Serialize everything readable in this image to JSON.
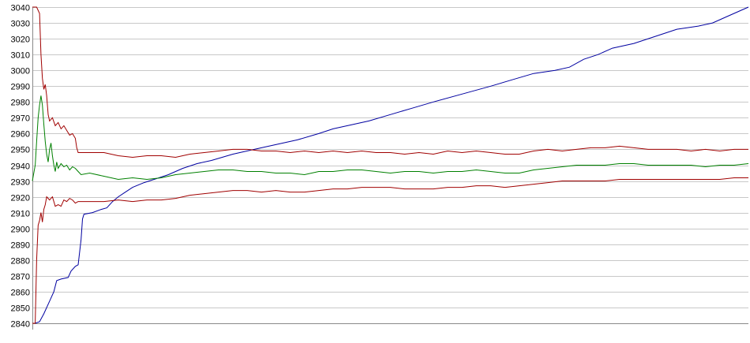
{
  "chart_data": {
    "type": "line",
    "title": "",
    "xlabel": "",
    "ylabel": "",
    "ylim": [
      2840,
      3040
    ],
    "yticks": [
      3040,
      3030,
      3020,
      3010,
      3000,
      2990,
      2980,
      2970,
      2960,
      2950,
      2940,
      2930,
      2920,
      2910,
      2900,
      2890,
      2880,
      2870,
      2860,
      2850,
      2840
    ],
    "xlim": [
      0,
      500
    ],
    "grid": true,
    "legend": "none",
    "series": [
      {
        "color": "#0000a0",
        "points": [
          [
            0,
            2840
          ],
          [
            2,
            2840
          ],
          [
            5,
            2841
          ],
          [
            8,
            2846
          ],
          [
            12,
            2854
          ],
          [
            15,
            2860
          ],
          [
            17,
            2867
          ],
          [
            20,
            2868
          ],
          [
            25,
            2869
          ],
          [
            27,
            2873
          ],
          [
            30,
            2876
          ],
          [
            32,
            2877
          ],
          [
            34,
            2893
          ],
          [
            35,
            2906
          ],
          [
            36,
            2909
          ],
          [
            42,
            2910
          ],
          [
            48,
            2912
          ],
          [
            52,
            2913
          ],
          [
            56,
            2917
          ],
          [
            60,
            2920
          ],
          [
            65,
            2923
          ],
          [
            70,
            2926
          ],
          [
            78,
            2929
          ],
          [
            85,
            2931
          ],
          [
            95,
            2934
          ],
          [
            105,
            2938
          ],
          [
            115,
            2941
          ],
          [
            125,
            2943
          ],
          [
            140,
            2947
          ],
          [
            155,
            2950
          ],
          [
            170,
            2953
          ],
          [
            185,
            2956
          ],
          [
            200,
            2960
          ],
          [
            210,
            2963
          ],
          [
            220,
            2965
          ],
          [
            235,
            2968
          ],
          [
            250,
            2972
          ],
          [
            265,
            2976
          ],
          [
            280,
            2980
          ],
          [
            300,
            2985
          ],
          [
            320,
            2990
          ],
          [
            335,
            2994
          ],
          [
            350,
            2998
          ],
          [
            365,
            3000
          ],
          [
            375,
            3002
          ],
          [
            385,
            3007
          ],
          [
            395,
            3010
          ],
          [
            405,
            3014
          ],
          [
            420,
            3017
          ],
          [
            440,
            3023
          ],
          [
            450,
            3026
          ],
          [
            465,
            3028
          ],
          [
            475,
            3030
          ],
          [
            485,
            3034
          ],
          [
            495,
            3038
          ],
          [
            500,
            3040
          ]
        ]
      },
      {
        "color": "#a00000",
        "points": [
          [
            0,
            3040
          ],
          [
            3,
            3040
          ],
          [
            5,
            3036
          ],
          [
            6,
            3010
          ],
          [
            7,
            2995
          ],
          [
            8,
            2988
          ],
          [
            9,
            2991
          ],
          [
            10,
            2984
          ],
          [
            11,
            2972
          ],
          [
            12,
            2968
          ],
          [
            14,
            2970
          ],
          [
            16,
            2965
          ],
          [
            18,
            2967
          ],
          [
            20,
            2963
          ],
          [
            22,
            2965
          ],
          [
            24,
            2962
          ],
          [
            26,
            2959
          ],
          [
            28,
            2960
          ],
          [
            30,
            2957
          ],
          [
            31,
            2951
          ],
          [
            32,
            2948
          ],
          [
            40,
            2948
          ],
          [
            50,
            2948
          ],
          [
            60,
            2946
          ],
          [
            70,
            2945
          ],
          [
            80,
            2946
          ],
          [
            90,
            2946
          ],
          [
            100,
            2945
          ],
          [
            110,
            2947
          ],
          [
            120,
            2948
          ],
          [
            130,
            2949
          ],
          [
            140,
            2950
          ],
          [
            150,
            2950
          ],
          [
            160,
            2949
          ],
          [
            170,
            2949
          ],
          [
            180,
            2948
          ],
          [
            190,
            2949
          ],
          [
            200,
            2948
          ],
          [
            210,
            2949
          ],
          [
            220,
            2948
          ],
          [
            230,
            2949
          ],
          [
            240,
            2948
          ],
          [
            250,
            2948
          ],
          [
            260,
            2947
          ],
          [
            270,
            2948
          ],
          [
            280,
            2947
          ],
          [
            290,
            2949
          ],
          [
            300,
            2948
          ],
          [
            310,
            2949
          ],
          [
            320,
            2948
          ],
          [
            330,
            2947
          ],
          [
            340,
            2947
          ],
          [
            350,
            2949
          ],
          [
            360,
            2950
          ],
          [
            370,
            2949
          ],
          [
            380,
            2950
          ],
          [
            390,
            2951
          ],
          [
            400,
            2951
          ],
          [
            410,
            2952
          ],
          [
            420,
            2951
          ],
          [
            430,
            2950
          ],
          [
            440,
            2950
          ],
          [
            450,
            2950
          ],
          [
            460,
            2949
          ],
          [
            470,
            2950
          ],
          [
            480,
            2949
          ],
          [
            490,
            2950
          ],
          [
            500,
            2950
          ]
        ]
      },
      {
        "color": "#008000",
        "points": [
          [
            0,
            2930
          ],
          [
            2,
            2940
          ],
          [
            3,
            2955
          ],
          [
            4,
            2970
          ],
          [
            5,
            2978
          ],
          [
            6,
            2984
          ],
          [
            7,
            2978
          ],
          [
            8,
            2966
          ],
          [
            9,
            2955
          ],
          [
            10,
            2947
          ],
          [
            11,
            2942
          ],
          [
            12,
            2950
          ],
          [
            13,
            2954
          ],
          [
            14,
            2946
          ],
          [
            15,
            2940
          ],
          [
            16,
            2936
          ],
          [
            17,
            2942
          ],
          [
            18,
            2938
          ],
          [
            20,
            2941
          ],
          [
            22,
            2939
          ],
          [
            24,
            2940
          ],
          [
            26,
            2937
          ],
          [
            28,
            2939
          ],
          [
            30,
            2938
          ],
          [
            32,
            2936
          ],
          [
            34,
            2934
          ],
          [
            40,
            2935
          ],
          [
            50,
            2933
          ],
          [
            60,
            2931
          ],
          [
            70,
            2932
          ],
          [
            80,
            2931
          ],
          [
            90,
            2932
          ],
          [
            100,
            2934
          ],
          [
            110,
            2935
          ],
          [
            120,
            2936
          ],
          [
            130,
            2937
          ],
          [
            140,
            2937
          ],
          [
            150,
            2936
          ],
          [
            160,
            2936
          ],
          [
            170,
            2935
          ],
          [
            180,
            2935
          ],
          [
            190,
            2934
          ],
          [
            200,
            2936
          ],
          [
            210,
            2936
          ],
          [
            220,
            2937
          ],
          [
            230,
            2937
          ],
          [
            240,
            2936
          ],
          [
            250,
            2935
          ],
          [
            260,
            2936
          ],
          [
            270,
            2936
          ],
          [
            280,
            2935
          ],
          [
            290,
            2936
          ],
          [
            300,
            2936
          ],
          [
            310,
            2937
          ],
          [
            320,
            2936
          ],
          [
            330,
            2935
          ],
          [
            340,
            2935
          ],
          [
            350,
            2937
          ],
          [
            360,
            2938
          ],
          [
            370,
            2939
          ],
          [
            380,
            2940
          ],
          [
            390,
            2940
          ],
          [
            400,
            2940
          ],
          [
            410,
            2941
          ],
          [
            420,
            2941
          ],
          [
            430,
            2940
          ],
          [
            440,
            2940
          ],
          [
            450,
            2940
          ],
          [
            460,
            2940
          ],
          [
            470,
            2939
          ],
          [
            480,
            2940
          ],
          [
            490,
            2940
          ],
          [
            500,
            2941
          ]
        ]
      },
      {
        "color": "#a00000",
        "points": [
          [
            0,
            2840
          ],
          [
            2,
            2840
          ],
          [
            3,
            2880
          ],
          [
            4,
            2902
          ],
          [
            5,
            2905
          ],
          [
            6,
            2910
          ],
          [
            7,
            2904
          ],
          [
            8,
            2912
          ],
          [
            9,
            2915
          ],
          [
            10,
            2920
          ],
          [
            12,
            2918
          ],
          [
            14,
            2920
          ],
          [
            16,
            2914
          ],
          [
            18,
            2915
          ],
          [
            20,
            2914
          ],
          [
            22,
            2918
          ],
          [
            24,
            2917
          ],
          [
            26,
            2919
          ],
          [
            28,
            2918
          ],
          [
            30,
            2916
          ],
          [
            32,
            2917
          ],
          [
            34,
            2917
          ],
          [
            40,
            2917
          ],
          [
            50,
            2917
          ],
          [
            60,
            2918
          ],
          [
            70,
            2917
          ],
          [
            80,
            2918
          ],
          [
            90,
            2918
          ],
          [
            100,
            2919
          ],
          [
            110,
            2921
          ],
          [
            120,
            2922
          ],
          [
            130,
            2923
          ],
          [
            140,
            2924
          ],
          [
            150,
            2924
          ],
          [
            160,
            2923
          ],
          [
            170,
            2924
          ],
          [
            180,
            2923
          ],
          [
            190,
            2923
          ],
          [
            200,
            2924
          ],
          [
            210,
            2925
          ],
          [
            220,
            2925
          ],
          [
            230,
            2926
          ],
          [
            240,
            2926
          ],
          [
            250,
            2926
          ],
          [
            260,
            2925
          ],
          [
            270,
            2925
          ],
          [
            280,
            2925
          ],
          [
            290,
            2926
          ],
          [
            300,
            2926
          ],
          [
            310,
            2927
          ],
          [
            320,
            2927
          ],
          [
            330,
            2926
          ],
          [
            340,
            2927
          ],
          [
            350,
            2928
          ],
          [
            360,
            2929
          ],
          [
            370,
            2930
          ],
          [
            380,
            2930
          ],
          [
            390,
            2930
          ],
          [
            400,
            2930
          ],
          [
            410,
            2931
          ],
          [
            420,
            2931
          ],
          [
            430,
            2931
          ],
          [
            440,
            2931
          ],
          [
            450,
            2931
          ],
          [
            460,
            2931
          ],
          [
            470,
            2931
          ],
          [
            480,
            2931
          ],
          [
            490,
            2932
          ],
          [
            500,
            2932
          ]
        ]
      }
    ]
  }
}
